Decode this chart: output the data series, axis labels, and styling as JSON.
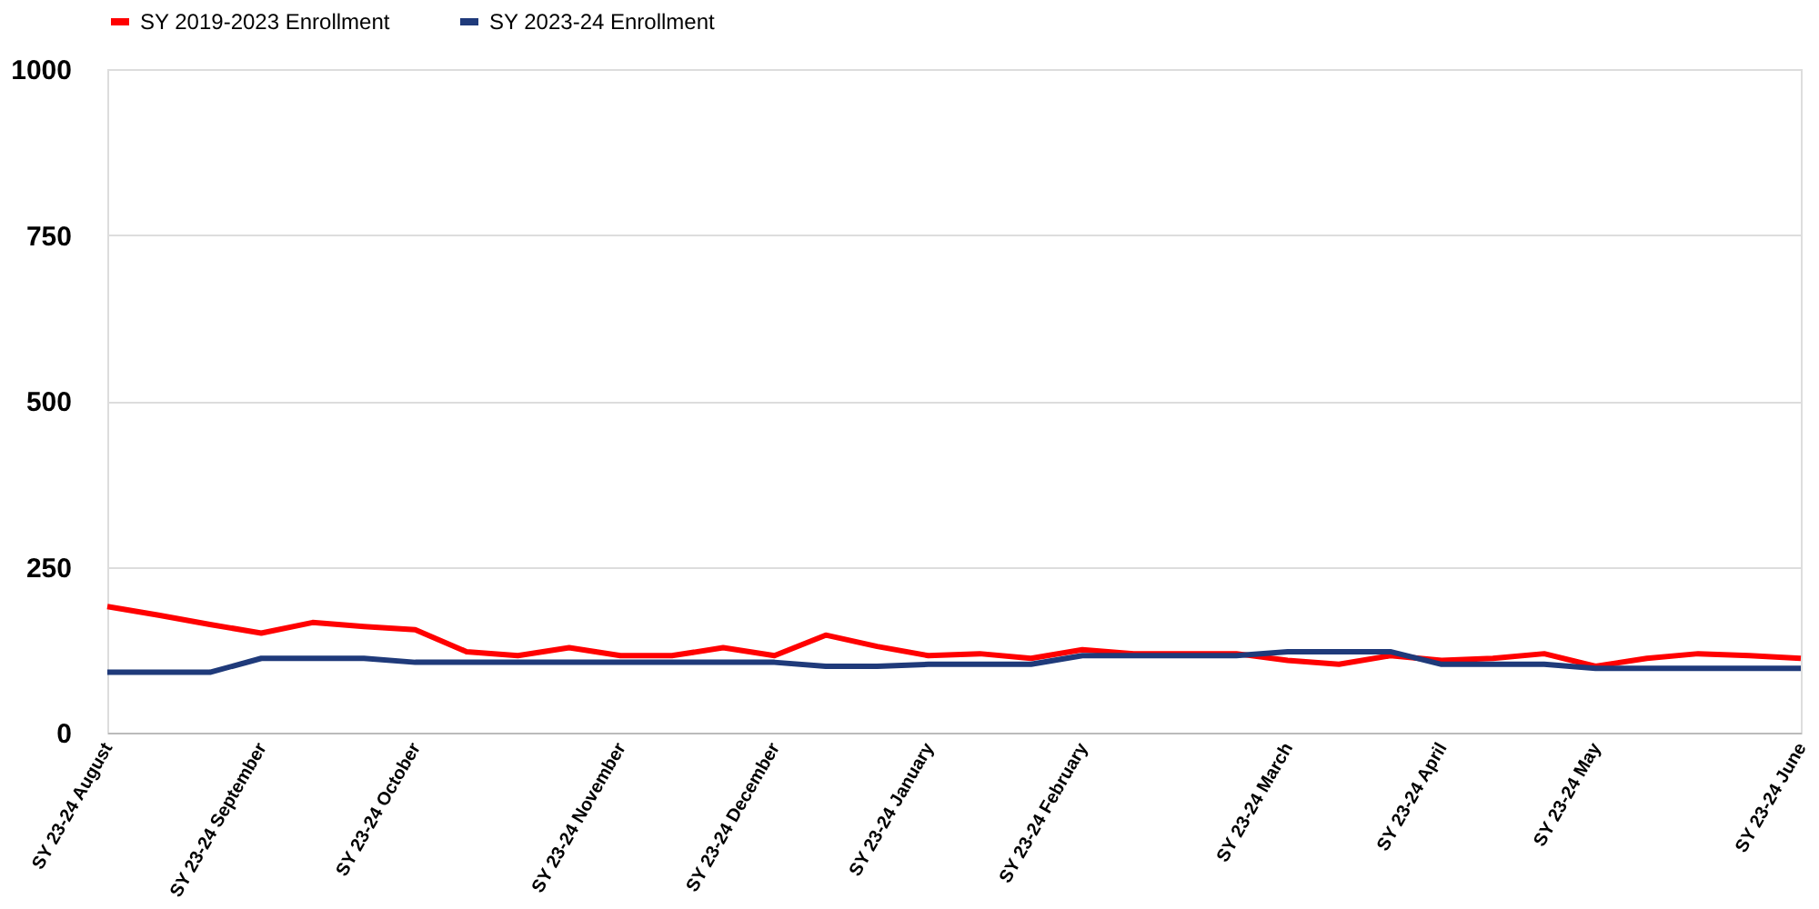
{
  "chart_data": {
    "type": "line",
    "categories": [
      "SY 23-24 August",
      null,
      null,
      "SY 23-24 September",
      null,
      null,
      "SY 23-24 October",
      null,
      null,
      null,
      "SY 23-24 November",
      null,
      null,
      "SY 23-24 December",
      null,
      null,
      "SY 23-24 January",
      null,
      null,
      "SY 23-24 February",
      null,
      null,
      null,
      "SY 23-24 March",
      null,
      null,
      "SY 23-24 April",
      null,
      null,
      "SY 23-24 May",
      null,
      null,
      null,
      "SY 23-24 June"
    ],
    "series": [
      {
        "name": "SY 2019-2023 Enrollment",
        "color": "#ff0000",
        "values": [
          190,
          177,
          163,
          150,
          166,
          160,
          155,
          122,
          116,
          128,
          116,
          116,
          128,
          116,
          147,
          130,
          116,
          119,
          112,
          125,
          119,
          119,
          119,
          109,
          103,
          116,
          109,
          112,
          119,
          100,
          112,
          119,
          116,
          112
        ]
      },
      {
        "name": "SY 2023-24 Enrollment",
        "color": "#1f3a7a",
        "values": [
          91,
          91,
          91,
          112,
          112,
          112,
          106,
          106,
          106,
          106,
          106,
          106,
          106,
          106,
          100,
          100,
          103,
          103,
          103,
          116,
          116,
          116,
          116,
          122,
          122,
          122,
          103,
          103,
          103,
          97,
          97,
          97,
          97,
          97
        ]
      }
    ],
    "ylim": [
      0,
      1000
    ],
    "yticks": [
      0,
      250,
      500,
      750,
      1000
    ],
    "grid": "y",
    "legend": "top",
    "marker": "none",
    "line_style": "solid"
  }
}
